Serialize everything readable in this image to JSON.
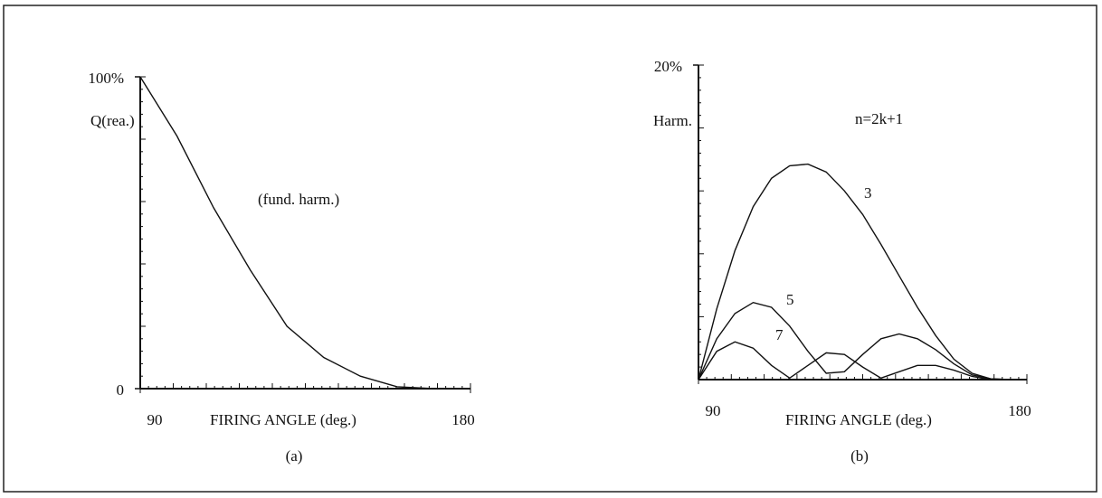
{
  "chart_data": [
    {
      "type": "line",
      "ylabel": "Q(rea.)",
      "annotation": "(fund. harm.)",
      "xlabel": "FIRING ANGLE (deg.)",
      "caption": "(a)",
      "x": [
        90,
        100,
        110,
        120,
        130,
        140,
        150,
        160,
        170,
        180
      ],
      "series": [
        {
          "color": "#111111",
          "values": [
            100,
            81,
            58,
            38,
            20,
            10,
            4,
            0.6,
            0,
            0
          ]
        }
      ],
      "xlim": [
        90,
        180
      ],
      "ylim": [
        0,
        100
      ],
      "xticks": [
        90,
        180
      ],
      "yticks": [
        {
          "value": 100,
          "label": "100%"
        },
        0
      ]
    },
    {
      "type": "line",
      "ylabel": "Harm.",
      "annotation": "n=2k+1",
      "xlabel": "FIRING ANGLE (deg.)",
      "caption": "(b)",
      "x": [
        90,
        95,
        100,
        105,
        110,
        115,
        120,
        125,
        130,
        135,
        140,
        145,
        150,
        155,
        160,
        165,
        170,
        175,
        180
      ],
      "series": [
        {
          "name": "3",
          "color": "#111111",
          "values": [
            0,
            4.5,
            8.2,
            11,
            12.8,
            13.6,
            13.7,
            13.2,
            12,
            10.5,
            8.6,
            6.6,
            4.6,
            2.8,
            1.3,
            0.4,
            0.05,
            0,
            0
          ]
        },
        {
          "name": "5",
          "color": "#111111",
          "values": [
            0,
            2.6,
            4.2,
            4.9,
            4.6,
            3.4,
            1.8,
            0.4,
            0.5,
            1.6,
            2.6,
            2.9,
            2.6,
            1.9,
            1.0,
            0.3,
            0.05,
            0,
            0
          ]
        },
        {
          "name": "7",
          "color": "#111111",
          "values": [
            0,
            1.8,
            2.4,
            2.0,
            0.9,
            0.1,
            0.9,
            1.7,
            1.6,
            0.8,
            0.1,
            0.5,
            0.9,
            0.9,
            0.6,
            0.2,
            0,
            0,
            0
          ]
        }
      ],
      "xlim": [
        90,
        180
      ],
      "ylim": [
        0,
        20
      ],
      "xticks": [
        90,
        180
      ],
      "yticks": [
        {
          "value": 20,
          "label": "20%"
        }
      ]
    }
  ]
}
